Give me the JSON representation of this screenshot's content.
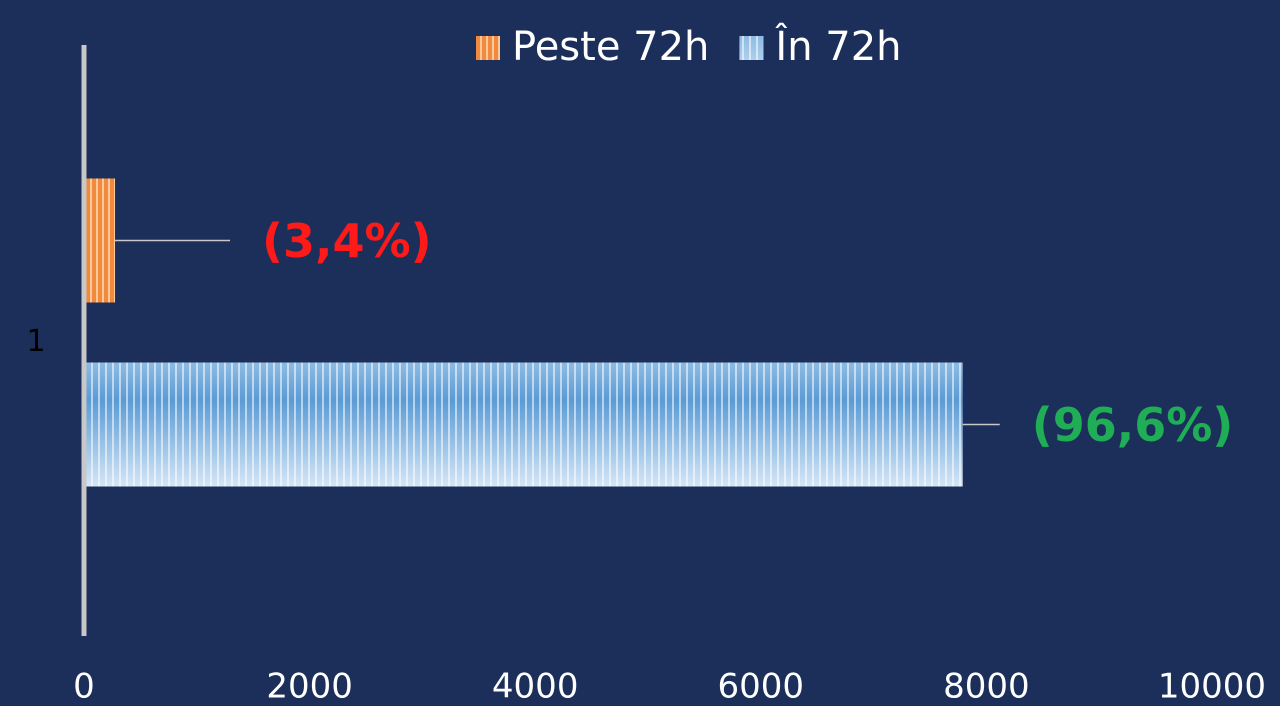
{
  "chart_data": {
    "type": "hbar",
    "categories": [
      "1"
    ],
    "series": [
      {
        "name": "Peste 72h",
        "color": "#f08a3c",
        "values": [
          275
        ],
        "value_labels": [
          "(3,4%)"
        ],
        "label_color": "#ff1a1a"
      },
      {
        "name": "În 72h",
        "color": "#7fb2e0",
        "values": [
          7790
        ],
        "value_labels": [
          "(96,6%)"
        ],
        "label_color": "#1fae55"
      }
    ],
    "xlim": [
      0,
      10000
    ],
    "xticks": [
      0,
      2000,
      4000,
      6000,
      8000,
      10000
    ],
    "legend": "top",
    "grid": false
  }
}
